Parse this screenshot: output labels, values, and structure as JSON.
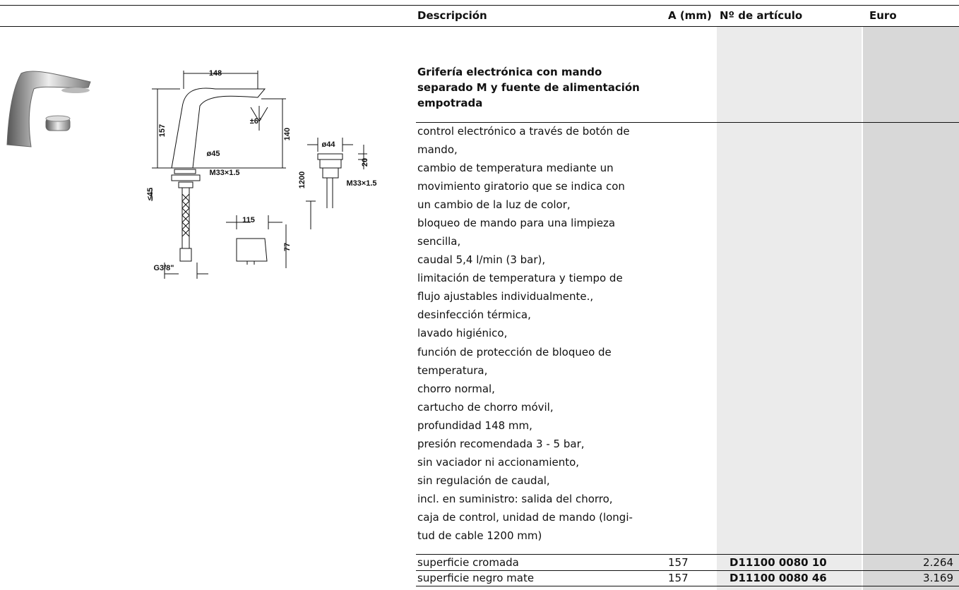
{
  "header": {
    "columns": [
      "Descripción",
      "A (mm)",
      "Nº de artículo",
      "Euro"
    ]
  },
  "drawing": {
    "labels": [
      "148",
      "±6°",
      "157",
      "140",
      "ø45",
      "M33×1.5",
      "≤45",
      "G3/8\"",
      "ø44",
      "20",
      "1200",
      "M33×1.5",
      "115",
      "77"
    ]
  },
  "product": {
    "title_lines": [
      "Grifería electrónica con mando",
      "separado M y fuente de alimentación",
      "empotrada"
    ],
    "description_lines": [
      "control electrónico a través de botón de",
      "mando,",
      "cambio de temperatura mediante un",
      "movimiento giratorio que se indica con",
      "un cambio de la luz de color,",
      "bloqueo de mando para una limpieza",
      "sencilla,",
      "caudal 5,4 l/min (3 bar),",
      "limitación de temperatura y tiempo de",
      "flujo ajustables individualmente.,",
      "desinfección térmica,",
      "lavado higiénico,",
      "función de protección de bloqueo de",
      "temperatura,",
      "chorro normal,",
      "cartucho de chorro móvil,",
      "profundidad 148 mm,",
      "presión recomendada 3 - 5 bar,",
      "sin vaciador ni accionamiento,",
      "sin regulación de caudal,",
      "incl. en suministro: salida del chorro,",
      "caja de control, unidad de mando (longi-",
      "tud de cable 1200 mm)"
    ],
    "rows": [
      [
        "superficie cromada",
        "157",
        "D11100 0080 10",
        "2.264"
      ],
      [
        "superficie negro mate",
        "157",
        "D11100 0080 46",
        "3.169"
      ]
    ]
  }
}
